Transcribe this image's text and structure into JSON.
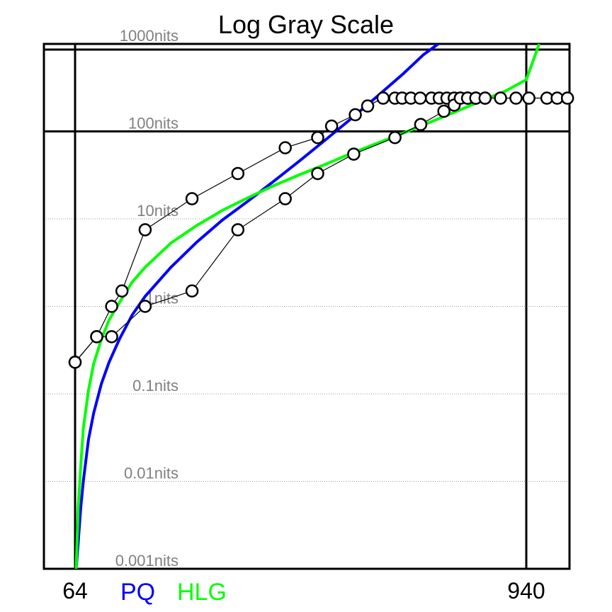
{
  "chart_data": {
    "type": "line",
    "title": "Log Gray Scale",
    "xlabel": "",
    "ylabel": "",
    "y_scale": "log",
    "ylim": [
      0.001,
      1000
    ],
    "y_unit": "nits",
    "y_tick_labels": [
      "1000nits",
      "100nits",
      "10nits",
      "1nits",
      "0.1nits",
      "0.01nits",
      "0.001nits"
    ],
    "y_ticks": [
      1000,
      100,
      10,
      1,
      0.1,
      0.01,
      0.001
    ],
    "x_tick_labels": [
      "64",
      "940"
    ],
    "x_ticks": [
      64,
      940
    ],
    "xlim": [
      0,
      1023
    ],
    "grid": true,
    "legend_placement": "bottom",
    "colors": {
      "PQ": "#0000ff",
      "HLG": "#00ff00",
      "markers": "#000000"
    },
    "series": [
      {
        "name": "PQ",
        "type": "curve",
        "x": [
          66,
          70,
          75,
          80,
          90,
          100,
          115,
          130,
          150,
          175,
          200,
          250,
          300,
          350,
          400,
          450,
          500,
          550,
          600,
          650,
          700,
          720,
          740,
          769
        ],
        "y": [
          0.001,
          0.002,
          0.005,
          0.01,
          0.03,
          0.06,
          0.13,
          0.23,
          0.42,
          0.8,
          1.3,
          2.8,
          5.4,
          9.7,
          16,
          27,
          46,
          80,
          140,
          250,
          450,
          580,
          750,
          1000
        ]
      },
      {
        "name": "HLG",
        "type": "curve",
        "x": [
          66,
          70,
          75,
          80,
          90,
          100,
          115,
          130,
          150,
          175,
          200,
          250,
          300,
          350,
          400,
          450,
          500,
          550,
          600,
          650,
          700,
          750,
          800,
          850,
          900,
          940,
          965
        ],
        "y": [
          0.001,
          0.005,
          0.015,
          0.04,
          0.11,
          0.22,
          0.42,
          0.7,
          1.1,
          1.9,
          2.8,
          5.3,
          8.4,
          12.5,
          17.5,
          24,
          32,
          42,
          56,
          73,
          95,
          125,
          165,
          220,
          290,
          390,
          1000
        ]
      },
      {
        "name": "",
        "type": "markers",
        "x": [
          64,
          106,
          135,
          155,
          200,
          291,
          380,
          472,
          535,
          562,
          608,
          632,
          662,
          685,
          699,
          716,
          734,
          756,
          771,
          786,
          800,
          812,
          826,
          842,
          860
        ],
        "y": [
          0.23,
          0.45,
          1.0,
          1.5,
          7.5,
          17.0,
          33.0,
          65.0,
          85.0,
          115.0,
          155.0,
          195.0,
          240.0,
          240.0,
          240.0,
          240.0,
          240.0,
          240.0,
          240.0,
          240.0,
          240.0,
          240.0,
          240.0,
          240.0,
          240.0
        ]
      },
      {
        "name": "",
        "type": "markers",
        "x": [
          64,
          106,
          135,
          200,
          291,
          380,
          472,
          535,
          605,
          685,
          735,
          780,
          800,
          812,
          826,
          842,
          860,
          890,
          920,
          945,
          980,
          1000,
          1020
        ],
        "y": [
          0.23,
          0.45,
          0.45,
          1.0,
          1.5,
          7.5,
          17.0,
          33.0,
          55.0,
          85.0,
          120.0,
          170.0,
          200.0,
          240.0,
          240.0,
          240.0,
          240.0,
          240.0,
          240.0,
          240.0,
          240.0,
          240.0,
          240.0
        ]
      }
    ]
  }
}
